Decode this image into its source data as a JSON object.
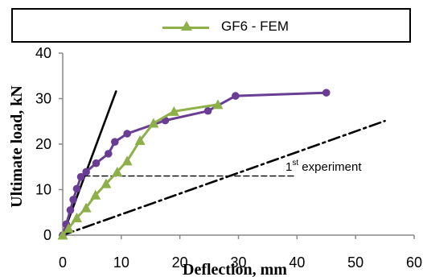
{
  "chart_data": {
    "type": "line",
    "xlabel": "Deflection, mm",
    "ylabel": "Ultimate load, kN",
    "xlim": [
      0,
      60
    ],
    "ylim": [
      0,
      40
    ],
    "xticks": [
      "0",
      "10",
      "20",
      "30",
      "40",
      "50",
      "60"
    ],
    "yticks": [
      "0",
      "10",
      "20",
      "30",
      "40"
    ],
    "grid": false,
    "legend": {
      "position": "top",
      "entries": [
        "GF6 - FEM"
      ]
    },
    "annotation": {
      "prefix": "1",
      "superscript": "st",
      "text": " experiment"
    },
    "series": [
      {
        "name": "GF6 - FEM",
        "color": "#8db048",
        "marker": "triangle",
        "x": [
          0,
          1,
          2.4,
          4,
          5.6,
          7.4,
          9.3,
          11,
          13.2,
          15.5,
          19,
          26.5
        ],
        "y": [
          0,
          1.5,
          3.8,
          6,
          8.8,
          11.3,
          13.9,
          16.3,
          20.8,
          24.6,
          27.2,
          28.7
        ]
      },
      {
        "color": "#6a3d95",
        "marker": "circle",
        "x": [
          0,
          0.6,
          1.3,
          1.8,
          2.4,
          3.1,
          4,
          5.7,
          7.8,
          8.9,
          11,
          17.5,
          24.8,
          29.5,
          45
        ],
        "y": [
          0,
          2.4,
          5.5,
          7.8,
          10.2,
          12.8,
          13.9,
          15.8,
          17.9,
          20.5,
          22.3,
          25.2,
          27.3,
          30.6,
          31.3
        ]
      },
      {
        "color": "#000000",
        "line_style": "solid",
        "x": [
          0,
          9.1
        ],
        "y": [
          0,
          31.6
        ]
      },
      {
        "color": "#000000",
        "line_style": "dash-dot",
        "x": [
          0,
          55
        ],
        "y": [
          0,
          25.1
        ]
      },
      {
        "color": "#000000",
        "line_style": "dashed",
        "x": [
          3.7,
          39.5
        ],
        "y": [
          13,
          13
        ]
      }
    ]
  }
}
